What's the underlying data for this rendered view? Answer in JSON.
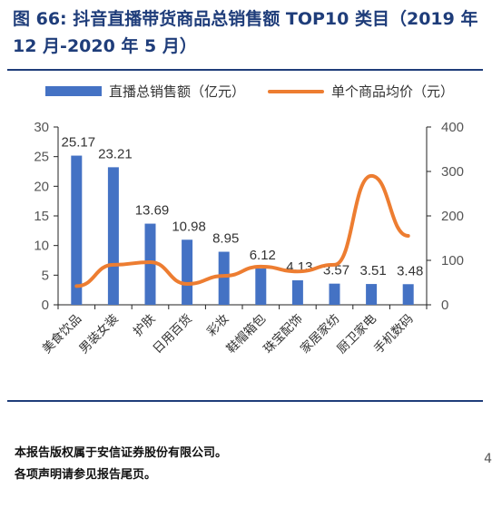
{
  "header": {
    "title": "图 66: 抖音直播带货商品总销售额 TOP10 类目（2019 年 12 月-2020 年 5 月）"
  },
  "footer": {
    "line1": "本报告版权属于安信证券股份有限公司。",
    "line2": "各项声明请参见报告尾页。",
    "page_number": "4"
  },
  "colors": {
    "bar": "#4472c4",
    "line": "#ed7d31",
    "rule": "#1f3d7a"
  },
  "chart_data": {
    "type": "bar",
    "title": "图 66: 抖音直播带货商品总销售额 TOP10 类目（2019 年 12 月-2020 年 5 月）",
    "categories": [
      "美食饮品",
      "男装女装",
      "护肤",
      "日用百货",
      "彩妆",
      "鞋帽箱包",
      "珠宝配饰",
      "家居家纺",
      "厨卫家电",
      "手机数码"
    ],
    "series": [
      {
        "name": "直播总销售额（亿元）",
        "type": "bar",
        "axis": "left",
        "values": [
          25.17,
          23.21,
          13.69,
          10.98,
          8.95,
          6.12,
          4.13,
          3.57,
          3.51,
          3.48
        ],
        "labels": [
          "25.17",
          "23.21",
          "13.69",
          "10.98",
          "8.95",
          "6.12",
          "4.13",
          "3.57",
          "3.51",
          "3.48"
        ]
      },
      {
        "name": "单个商品均价（元）",
        "type": "line",
        "axis": "right",
        "values": [
          42,
          90,
          96,
          47,
          65,
          86,
          75,
          90,
          290,
          155
        ]
      }
    ],
    "y_left": {
      "ticks": [
        "0",
        "5",
        "10",
        "15",
        "20",
        "25",
        "30"
      ],
      "ylim": [
        0,
        30
      ]
    },
    "y_right": {
      "ticks": [
        "0",
        "100",
        "200",
        "300",
        "400"
      ],
      "ylim": [
        0,
        400
      ]
    },
    "legend_position": "top",
    "grid": false
  }
}
